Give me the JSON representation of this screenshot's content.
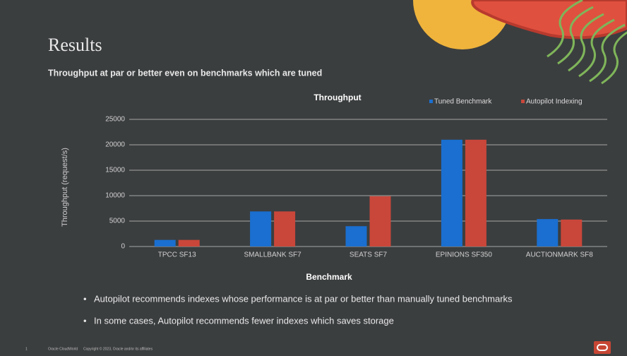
{
  "slide": {
    "title": "Results",
    "subtitle": "Throughput at par or better even on benchmarks which are tuned",
    "bullets": [
      "Autopilot recommends indexes whose performance is at par or better than manually tuned benchmarks",
      "In some cases, Autopilot recommends fewer indexes which saves storage"
    ],
    "footer": {
      "page": "1",
      "event": "Oracle CloudWorld",
      "copyright": "Copyright © 2023, Oracle and/or its affiliates"
    }
  },
  "chart_data": {
    "type": "bar",
    "title": "Throughput",
    "x_label": "Benchmark",
    "y_label": "Throughput (request/s)",
    "categories": [
      "TPCC SF13",
      "SMALLBANK SF7",
      "SEATS SF7",
      "EPINIONS SF350",
      "AUCTIONMARK SF8"
    ],
    "series": [
      {
        "name": "Tuned Benchmark",
        "color": "#1a6fd0",
        "values": [
          1300,
          6900,
          4000,
          21000,
          5400
        ]
      },
      {
        "name": "Autopilot Indexing",
        "color": "#c9473a",
        "values": [
          1300,
          6900,
          9900,
          21000,
          5300
        ]
      }
    ],
    "ylim": [
      0,
      25000
    ],
    "yticks": [
      0,
      5000,
      10000,
      15000,
      20000,
      25000
    ],
    "grid": true,
    "legend": "top-right"
  }
}
